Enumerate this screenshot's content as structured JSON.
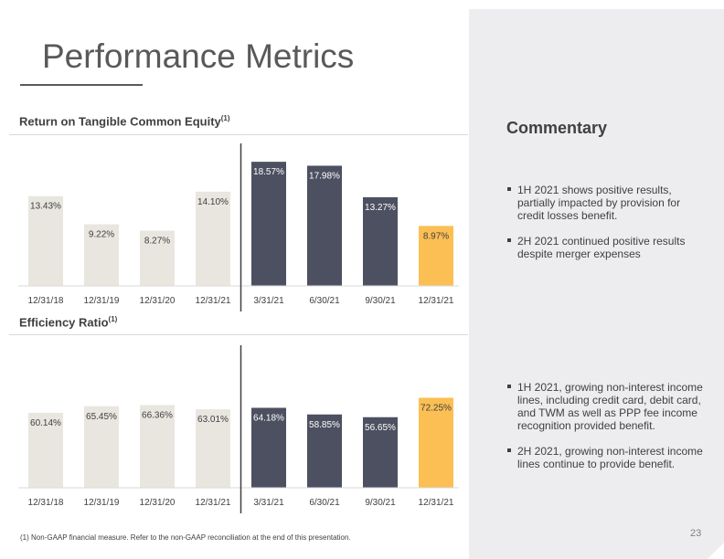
{
  "page": {
    "title": "Performance Metrics",
    "page_number": "23",
    "footnote": "(1)   Non-GAAP financial measure.  Refer to the non-GAAP reconciliation at the end of this presentation."
  },
  "colors": {
    "annual_bar": "#e9e6e0",
    "quarter_bar": "#4d5061",
    "highlight_bar": "#fbbf54",
    "divider": "#404040",
    "panel": "#ededf0"
  },
  "commentary": {
    "title": "Commentary",
    "rotce_bullets": [
      "1H 2021 shows positive results, partially impacted by provision for credit losses benefit.",
      "2H 2021 continued positive results despite merger expenses"
    ],
    "efficiency_bullets": [
      "1H 2021, growing non-interest income lines, including credit card, debit card, and TWM as well as PPP fee income recognition provided benefit.",
      "2H 2021, growing non-interest income lines continue to provide benefit."
    ]
  },
  "chart_data": [
    {
      "type": "bar",
      "title": "Return on Tangible Common Equity",
      "title_note": "(1)",
      "categories": [
        "12/31/18",
        "12/31/19",
        "12/31/20",
        "12/31/21",
        "3/31/21",
        "6/30/21",
        "9/30/21",
        "12/31/21"
      ],
      "values": [
        13.43,
        9.22,
        8.27,
        14.1,
        18.57,
        17.98,
        13.27,
        8.97
      ],
      "labels": [
        "13.43%",
        "9.22%",
        "8.27%",
        "14.10%",
        "18.57%",
        "17.98%",
        "13.27%",
        "8.97%"
      ],
      "bar_groups": [
        "annual",
        "annual",
        "annual",
        "annual",
        "quarter",
        "quarter",
        "quarter",
        "highlight"
      ],
      "ylim": [
        0,
        20.5
      ],
      "grid": false,
      "divider_after_index": 3
    },
    {
      "type": "bar",
      "title": "Efficiency Ratio",
      "title_note": "(1)",
      "categories": [
        "12/31/18",
        "12/31/19",
        "12/31/20",
        "12/31/21",
        "3/31/21",
        "6/30/21",
        "9/30/21",
        "12/31/21"
      ],
      "values": [
        60.14,
        65.45,
        66.36,
        63.01,
        64.18,
        58.85,
        56.65,
        72.25
      ],
      "labels": [
        "60.14%",
        "65.45%",
        "66.36%",
        "63.01%",
        "64.18%",
        "58.85%",
        "56.65%",
        "72.25%"
      ],
      "bar_groups": [
        "annual",
        "annual",
        "annual",
        "annual",
        "quarter",
        "quarter",
        "quarter",
        "highlight"
      ],
      "ylim": [
        0,
        110
      ],
      "grid": false,
      "divider_after_index": 3
    }
  ]
}
